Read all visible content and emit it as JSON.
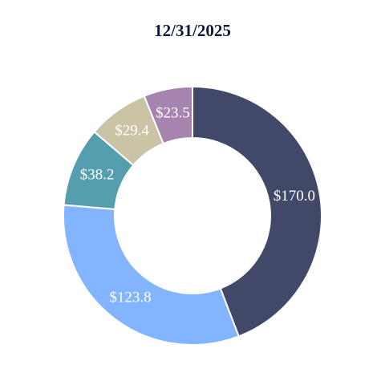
{
  "chart_data": {
    "type": "donut",
    "title": "12/31/2025",
    "values": [
      170.0,
      123.8,
      38.2,
      29.4,
      23.5
    ],
    "value_labels": [
      "$170.0",
      "$123.8",
      "$38.2",
      "$29.4",
      "$23.5"
    ],
    "colors": [
      "#414868",
      "#82b4ff",
      "#559eb0",
      "#cbc3a5",
      "#a784b0"
    ]
  }
}
